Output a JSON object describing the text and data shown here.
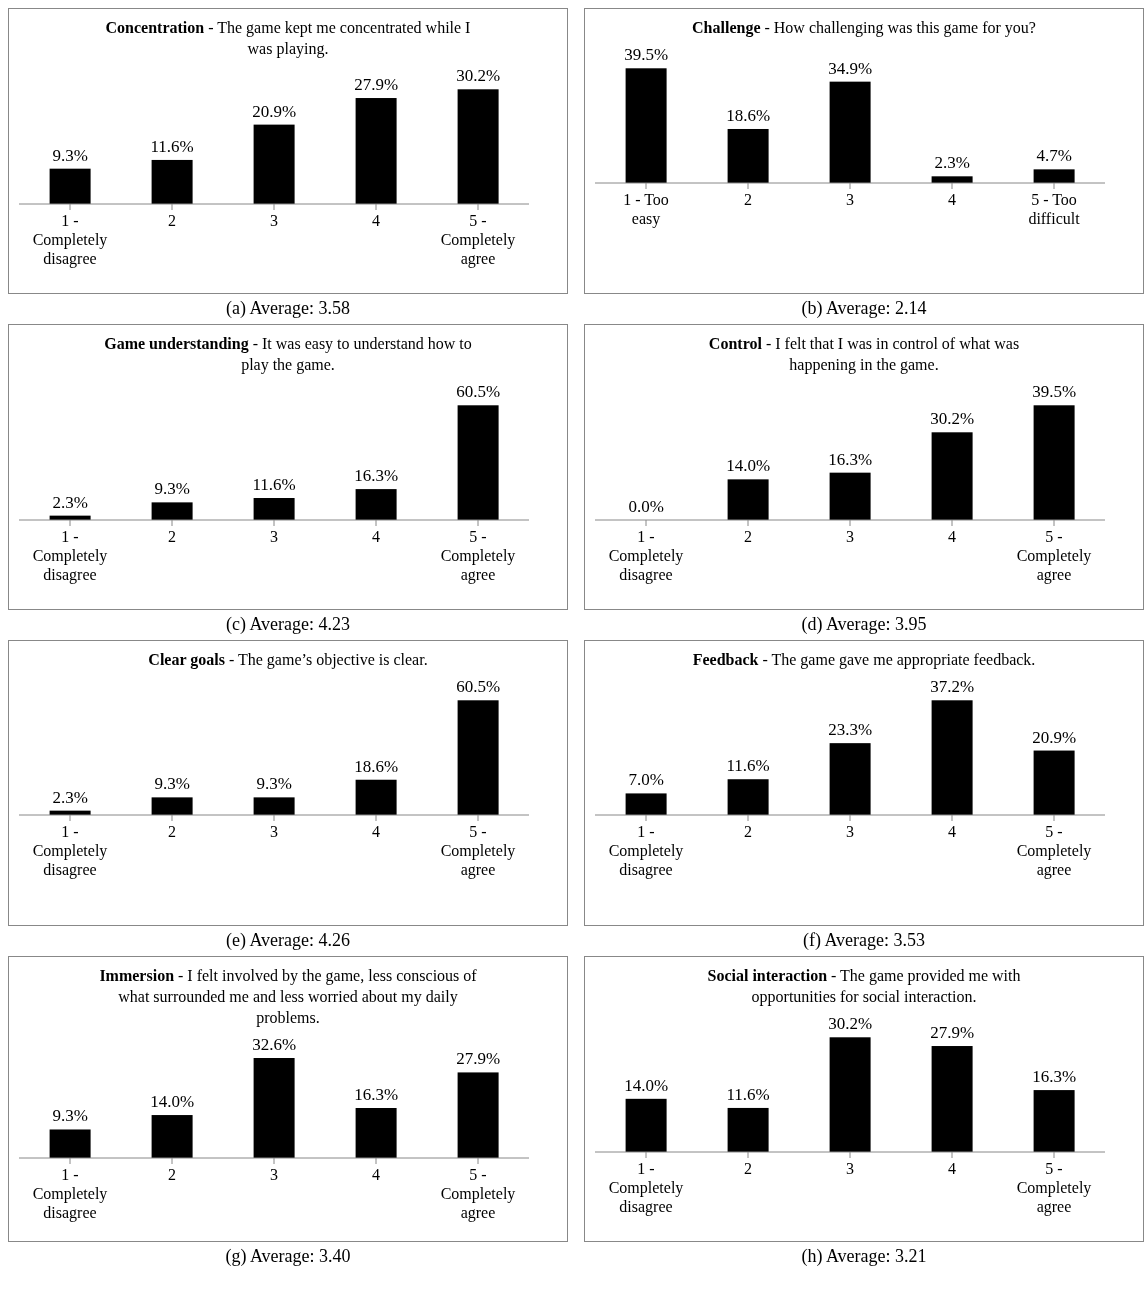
{
  "chart_data": [
    {
      "type": "bar",
      "title": "Concentration - The game kept me concentrated while I was playing.",
      "categories": [
        "1 - Completely disagree",
        "2",
        "3",
        "4",
        "5 - Completely agree"
      ],
      "values": [
        9.3,
        11.6,
        20.9,
        27.9,
        30.2
      ],
      "value_labels": [
        "9.3%",
        "11.6%",
        "20.9%",
        "27.9%",
        "30.2%"
      ],
      "color": "#000000",
      "annotations": [
        "(a) Average: 3.58"
      ]
    },
    {
      "type": "bar",
      "title": "Challenge - How challenging was this game for you?",
      "categories": [
        "1 - Too easy",
        "2",
        "3",
        "4",
        "5 - Too difficult"
      ],
      "values": [
        39.5,
        18.6,
        34.9,
        2.3,
        4.7
      ],
      "value_labels": [
        "39.5%",
        "18.6%",
        "34.9%",
        "2.3%",
        "4.7%"
      ],
      "color": "#000000",
      "annotations": [
        "(b) Average: 2.14"
      ]
    },
    {
      "type": "bar",
      "title": "Game understanding - It was easy to understand how to play the game.",
      "categories": [
        "1 - Completely disagree",
        "2",
        "3",
        "4",
        "5 - Completely agree"
      ],
      "values": [
        2.3,
        9.3,
        11.6,
        16.3,
        60.5
      ],
      "value_labels": [
        "2.3%",
        "9.3%",
        "11.6%",
        "16.3%",
        "60.5%"
      ],
      "color": "#000000",
      "annotations": [
        "(c) Average: 4.23"
      ]
    },
    {
      "type": "bar",
      "title": "Control - I felt that I was in control of what was happening in the game.",
      "categories": [
        "1 - Completely disagree",
        "2",
        "3",
        "4",
        "5 - Completely agree"
      ],
      "values": [
        0.0,
        14.0,
        16.3,
        30.2,
        39.5
      ],
      "value_labels": [
        "0.0%",
        "14.0%",
        "16.3%",
        "30.2%",
        "39.5%"
      ],
      "color": "#000000",
      "annotations": [
        "(d) Average: 3.95"
      ]
    },
    {
      "type": "bar",
      "title": "Clear goals - The game’s objective is clear.",
      "categories": [
        "1 - Completely disagree",
        "2",
        "3",
        "4",
        "5 - Completely agree"
      ],
      "values": [
        2.3,
        9.3,
        9.3,
        18.6,
        60.5
      ],
      "value_labels": [
        "2.3%",
        "9.3%",
        "9.3%",
        "18.6%",
        "60.5%"
      ],
      "color": "#000000",
      "annotations": [
        "(e) Average: 4.26"
      ]
    },
    {
      "type": "bar",
      "title": "Feedback - The game gave me appropriate feedback.",
      "categories": [
        "1 - Completely disagree",
        "2",
        "3",
        "4",
        "5 - Completely agree"
      ],
      "values": [
        7.0,
        11.6,
        23.3,
        37.2,
        20.9
      ],
      "value_labels": [
        "7.0%",
        "11.6%",
        "23.3%",
        "37.2%",
        "20.9%"
      ],
      "color": "#000000",
      "annotations": [
        "(f) Average: 3.53"
      ]
    },
    {
      "type": "bar",
      "title": "Immersion - I felt involved by the game, less conscious of what surrounded me and less worried about my daily problems.",
      "categories": [
        "1 - Completely disagree",
        "2",
        "3",
        "4",
        "5 - Completely agree"
      ],
      "values": [
        9.3,
        14.0,
        32.6,
        16.3,
        27.9
      ],
      "value_labels": [
        "9.3%",
        "14.0%",
        "32.6%",
        "16.3%",
        "27.9%"
      ],
      "color": "#000000",
      "annotations": [
        "(g) Average: 3.40"
      ]
    },
    {
      "type": "bar",
      "title": "Social interaction - The game provided me with opportunities for social interaction.",
      "categories": [
        "1 - Completely disagree",
        "2",
        "3",
        "4",
        "5 - Completely agree"
      ],
      "values": [
        14.0,
        11.6,
        30.2,
        27.9,
        16.3
      ],
      "value_labels": [
        "14.0%",
        "11.6%",
        "30.2%",
        "27.9%",
        "16.3%"
      ],
      "color": "#000000",
      "annotations": [
        "(h) Average: 3.21"
      ]
    }
  ]
}
